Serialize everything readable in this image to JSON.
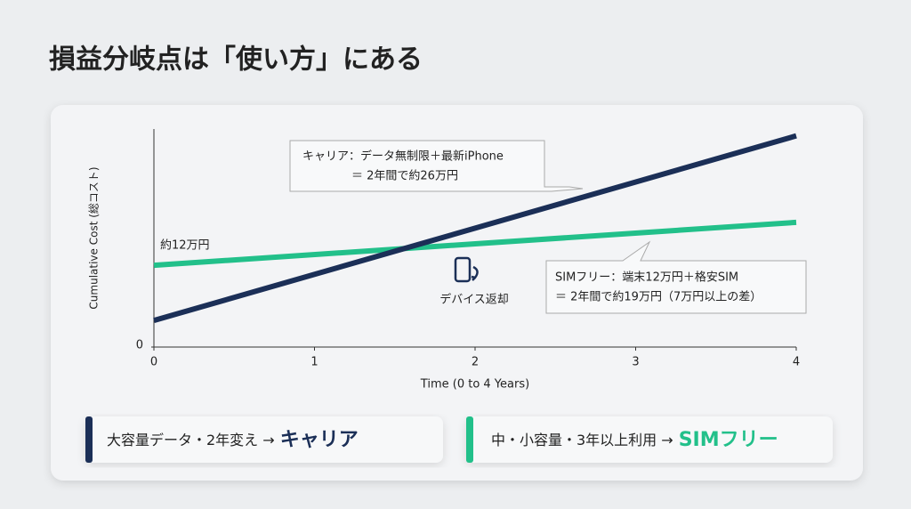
{
  "title": "損益分岐点は「使い方」にある",
  "chart_data": {
    "type": "line",
    "x": [
      0,
      4
    ],
    "xlim": [
      0,
      4
    ],
    "xticks": [
      0,
      1,
      2,
      3,
      4
    ],
    "ylim": [
      0,
      32
    ],
    "yticks": [
      0
    ],
    "x_label": "Time (0 to 4 Years)",
    "y_label": "Cumulative Cost (総コスト)",
    "series": [
      {
        "name": "キャリア",
        "color": "#1b2f57",
        "values": [
          3.9,
          31
        ]
      },
      {
        "name": "SIMフリー",
        "color": "#22c08a",
        "values": [
          12,
          18.3
        ]
      }
    ],
    "annotations": {
      "start_label": "約12万円",
      "device_return": "デバイス返却",
      "carrier_callout": [
        "キャリア：データ無制限＋最新iPhone",
        "＝ 2年間で約26万円"
      ],
      "sim_callout": [
        "SIMフリー：端末12万円＋格安SIM",
        "＝ 2年間で約19万円（7万円以上の差）"
      ]
    }
  },
  "cards": [
    "大容量データ・2年変え →",
    "中・小容量・3年以上利用 →"
  ]
}
